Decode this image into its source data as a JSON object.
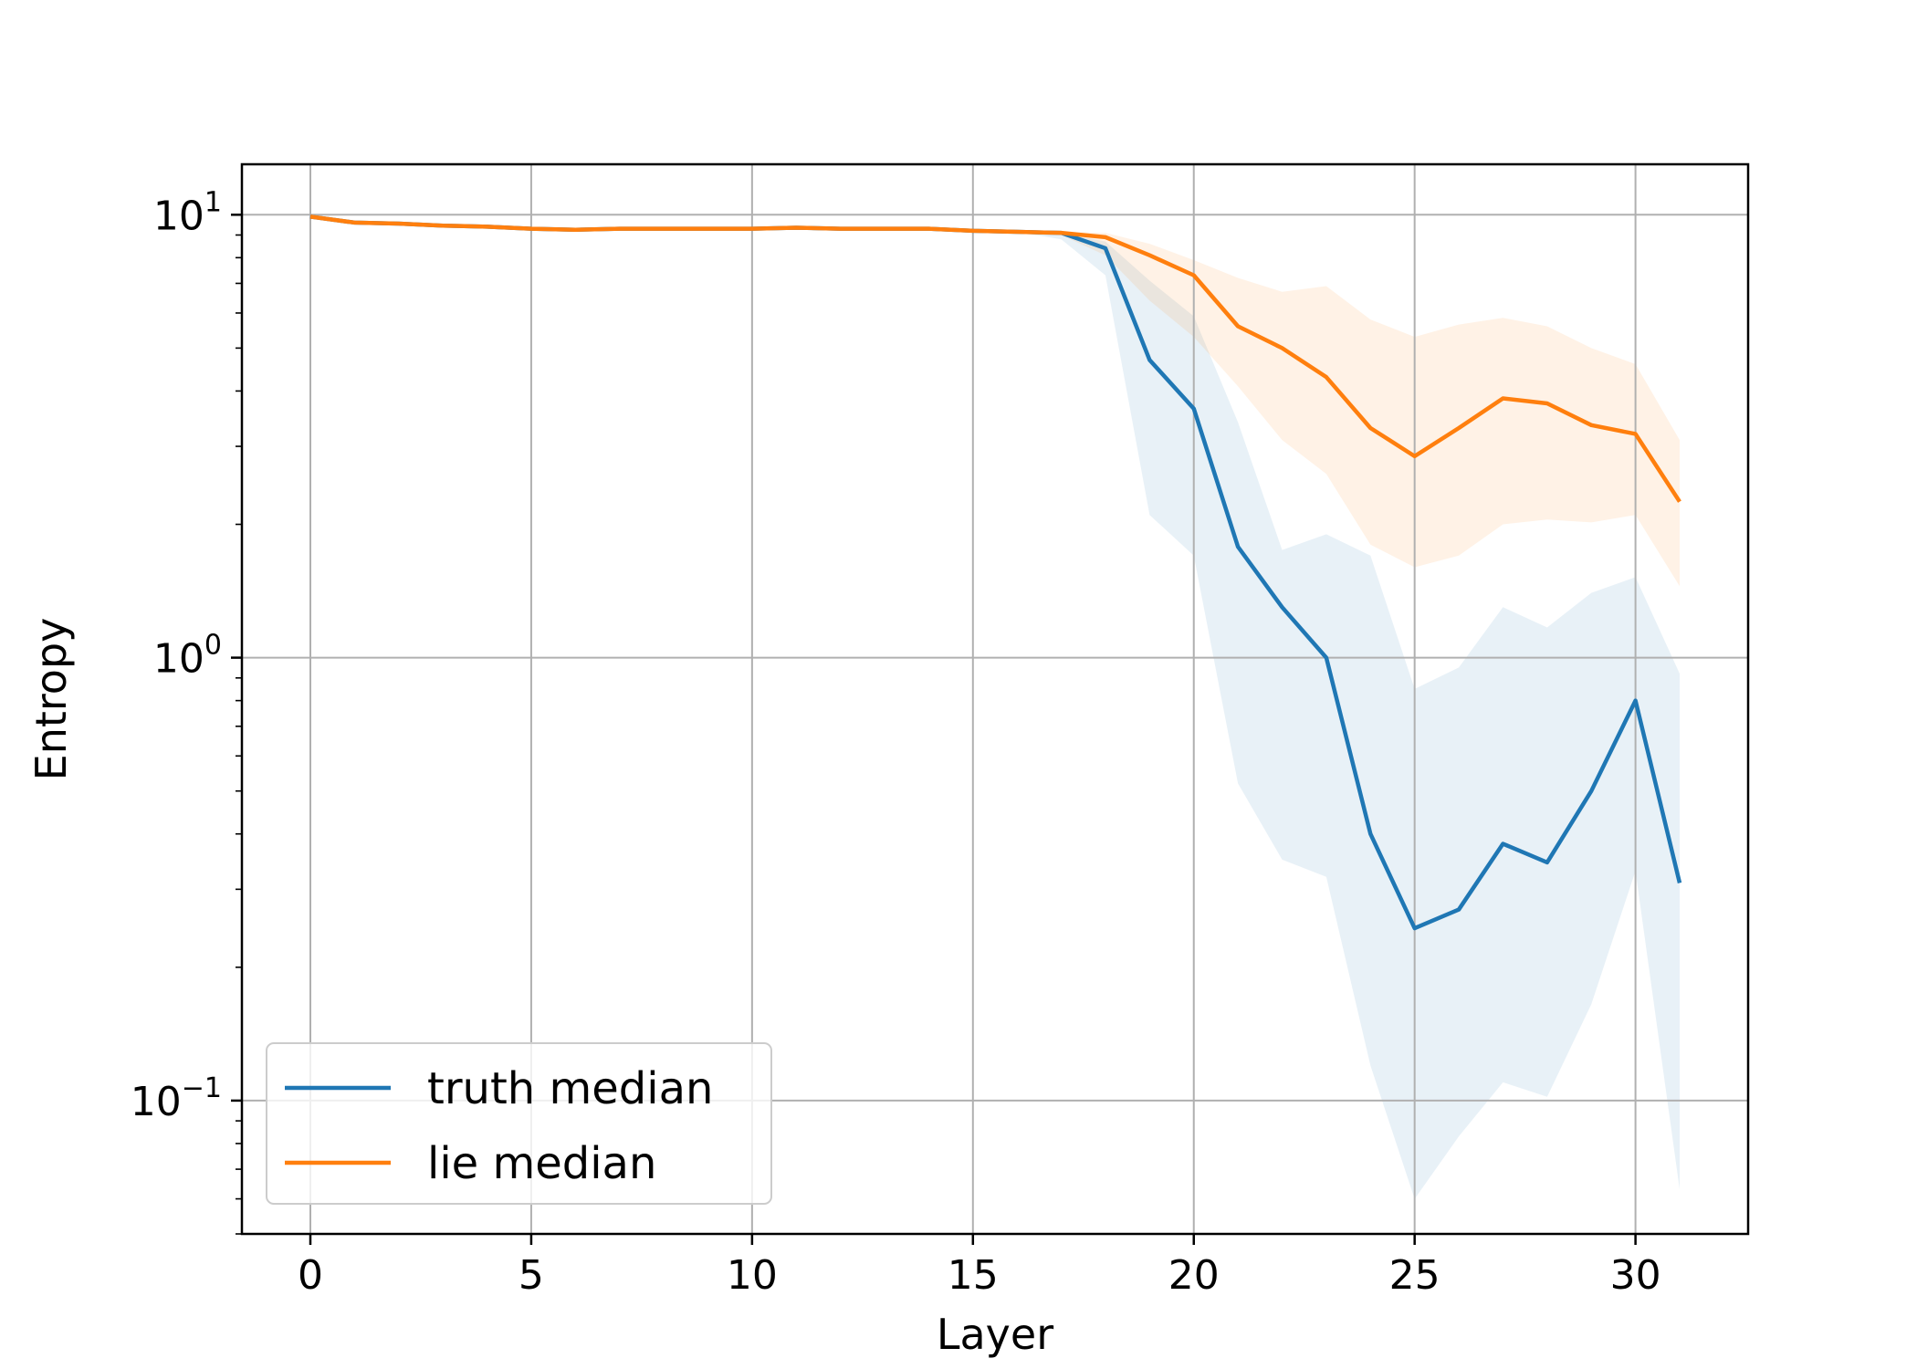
{
  "chart_data": {
    "type": "line",
    "xlabel": "Layer",
    "ylabel": "Entropy",
    "yscale": "log",
    "xlim": [
      -1.55,
      32.55
    ],
    "ylim": [
      0.05,
      13.0
    ],
    "grid": true,
    "legend_position": "lower-left",
    "x_ticks": [
      0,
      5,
      10,
      15,
      20,
      25,
      30
    ],
    "x_tick_labels": [
      "0",
      "5",
      "10",
      "15",
      "20",
      "25",
      "30"
    ],
    "y_ticks": [
      {
        "value": 10,
        "base": "10",
        "exp": "1"
      },
      {
        "value": 1,
        "base": "10",
        "exp": "0"
      },
      {
        "value": 0.1,
        "base": "10",
        "exp": "−1"
      }
    ],
    "x": [
      0,
      1,
      2,
      3,
      4,
      5,
      6,
      7,
      8,
      9,
      10,
      11,
      12,
      13,
      14,
      15,
      16,
      17,
      18,
      19,
      20,
      21,
      22,
      23,
      24,
      25,
      26,
      27,
      28,
      29,
      30,
      31
    ],
    "series": [
      {
        "name": "truth median",
        "color": "#1f77b4",
        "values": [
          9.9,
          9.6,
          9.55,
          9.45,
          9.4,
          9.3,
          9.25,
          9.3,
          9.3,
          9.3,
          9.3,
          9.35,
          9.3,
          9.3,
          9.3,
          9.2,
          9.15,
          9.1,
          8.4,
          4.7,
          3.65,
          1.78,
          1.3,
          1.0,
          0.4,
          0.245,
          0.27,
          0.38,
          0.345,
          0.5,
          0.8,
          0.31
        ],
        "band_lower": [
          9.9,
          9.6,
          9.55,
          9.45,
          9.4,
          9.3,
          9.25,
          9.3,
          9.3,
          9.3,
          9.3,
          9.35,
          9.3,
          9.3,
          9.3,
          9.2,
          9.15,
          8.8,
          7.3,
          2.1,
          1.7,
          0.52,
          0.35,
          0.32,
          0.12,
          0.06,
          0.083,
          0.11,
          0.102,
          0.165,
          0.33,
          0.063
        ],
        "band_upper": [
          9.9,
          9.6,
          9.55,
          9.45,
          9.4,
          9.3,
          9.25,
          9.3,
          9.3,
          9.3,
          9.3,
          9.35,
          9.3,
          9.3,
          9.3,
          9.2,
          9.15,
          9.1,
          8.7,
          7.1,
          5.9,
          3.4,
          1.75,
          1.9,
          1.7,
          0.85,
          0.95,
          1.3,
          1.17,
          1.4,
          1.52,
          0.92
        ]
      },
      {
        "name": "lie median",
        "color": "#ff7f0e",
        "values": [
          9.9,
          9.6,
          9.55,
          9.45,
          9.4,
          9.3,
          9.25,
          9.3,
          9.3,
          9.3,
          9.3,
          9.35,
          9.3,
          9.3,
          9.3,
          9.2,
          9.15,
          9.1,
          8.9,
          8.1,
          7.3,
          5.6,
          5.0,
          4.3,
          3.3,
          2.85,
          3.3,
          3.85,
          3.75,
          3.35,
          3.2,
          2.25
        ],
        "band_lower": [
          9.9,
          9.6,
          9.55,
          9.45,
          9.4,
          9.3,
          9.25,
          9.3,
          9.3,
          9.3,
          9.3,
          9.35,
          9.3,
          9.3,
          9.3,
          9.2,
          9.15,
          9.0,
          8.1,
          6.4,
          5.3,
          4.1,
          3.1,
          2.6,
          1.8,
          1.6,
          1.7,
          2.0,
          2.05,
          2.02,
          2.1,
          1.45
        ],
        "band_upper": [
          9.9,
          9.6,
          9.55,
          9.45,
          9.4,
          9.3,
          9.25,
          9.3,
          9.3,
          9.3,
          9.3,
          9.35,
          9.3,
          9.3,
          9.3,
          9.2,
          9.15,
          9.15,
          9.1,
          8.6,
          7.9,
          7.2,
          6.7,
          6.9,
          5.8,
          5.3,
          5.65,
          5.85,
          5.6,
          5.0,
          4.6,
          3.1
        ]
      }
    ]
  }
}
